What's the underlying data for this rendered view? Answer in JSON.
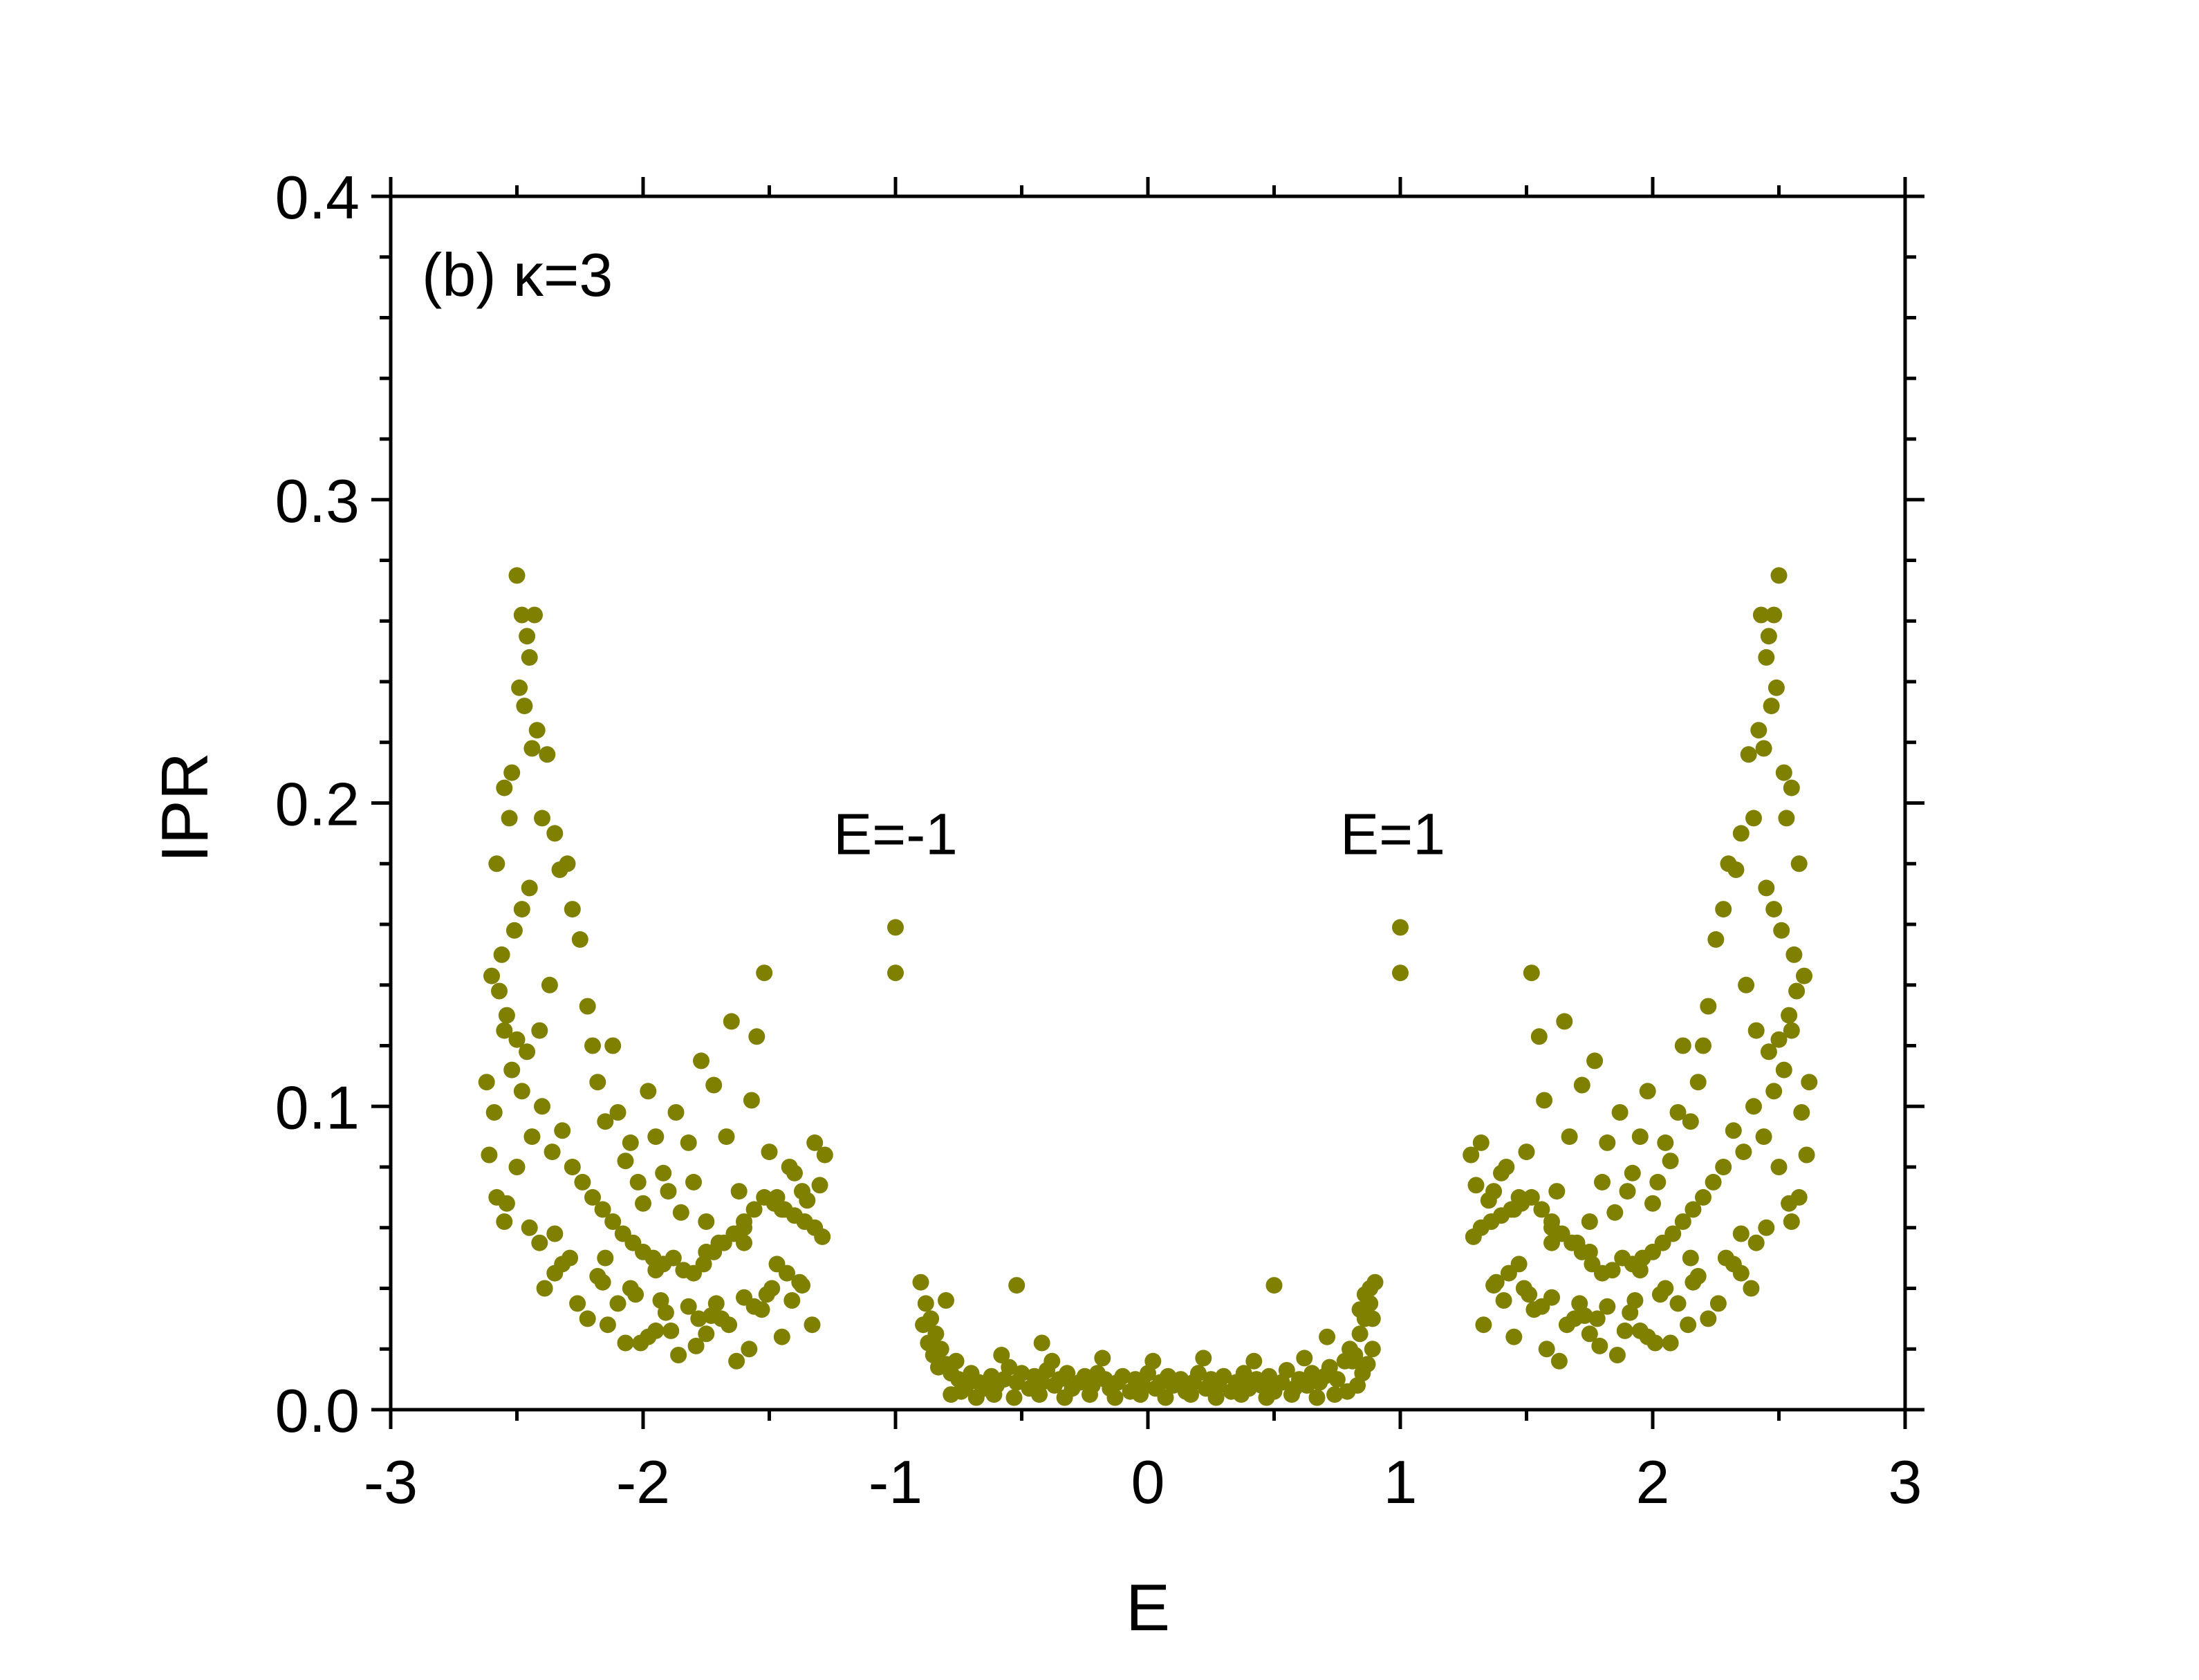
{
  "colors": {
    "points": "#808000",
    "axis": "#000000",
    "background": "#ffffff"
  },
  "chart_data": {
    "type": "scatter",
    "panel_label": "(b) κ=3",
    "xlabel": "E",
    "ylabel": "IPR",
    "xlim": [
      -3,
      3
    ],
    "ylim": [
      0,
      0.4
    ],
    "xticks": [
      "-3",
      "-2",
      "-1",
      "0",
      "1",
      "2",
      "3"
    ],
    "yticks": [
      "0.0",
      "0.1",
      "0.2",
      "0.3",
      "0.4"
    ],
    "grid": false,
    "annotations": [
      {
        "text": "E=-1",
        "x": -1.0,
        "y": 0.19
      },
      {
        "text": "E=1",
        "x": 0.97,
        "y": 0.19
      }
    ],
    "isolated_points": [
      {
        "x": -1.0,
        "y": 0.159
      },
      {
        "x": -1.0,
        "y": 0.144
      },
      {
        "x": 1.0,
        "y": 0.159
      },
      {
        "x": 1.0,
        "y": 0.144
      }
    ],
    "series": [
      {
        "x": [
          -2.5,
          -2.48,
          -2.46,
          -2.45,
          -2.43,
          -2.49,
          -2.47,
          -2.44,
          -2.52,
          -2.55,
          -2.53,
          -2.58,
          -2.42,
          -2.38,
          -2.35,
          -2.4,
          -2.45,
          -2.48,
          -2.51,
          -2.56,
          -2.6,
          -2.57,
          -2.54,
          -2.5,
          -2.46,
          -2.41,
          -2.37,
          -2.33,
          -2.3,
          -2.28,
          -2.25,
          -2.22,
          -2.2,
          -2.18,
          -2.15,
          -2.12,
          -2.1,
          -2.07,
          -2.05,
          -2.02,
          -2.0,
          -1.98,
          -1.95,
          -1.92,
          -1.9,
          -1.87,
          -1.85,
          -1.82,
          -1.8,
          -1.77,
          -1.75,
          -1.72,
          -1.7,
          -1.67,
          -1.65,
          -1.62,
          -1.6,
          -1.57,
          -1.55,
          -1.52,
          -1.5,
          -1.47,
          -1.45,
          -1.42,
          -1.4,
          -1.37,
          -1.35,
          -1.32,
          -1.3,
          -1.28,
          -2.62,
          -2.59,
          -2.55,
          -2.52,
          -2.48,
          -2.44,
          -2.4,
          -2.36,
          -2.32,
          -2.28,
          -2.24,
          -2.2,
          -2.16,
          -2.12,
          -2.08,
          -2.04,
          -2.0,
          -1.96,
          -1.92,
          -1.88,
          -1.84,
          -1.8,
          -1.76,
          -1.72,
          -1.68,
          -1.64,
          -1.6,
          -1.56,
          -1.52,
          -1.48,
          -1.44,
          -1.4,
          -1.36,
          -1.32,
          -1.29,
          -2.58,
          -2.45,
          -2.32,
          -2.18,
          -2.05,
          -1.93,
          -1.82,
          -1.71,
          -1.6,
          -1.49,
          -1.38,
          -2.54,
          -2.41,
          -2.29,
          -2.16,
          -2.03,
          -1.91,
          -1.78,
          -1.66,
          -1.53,
          -1.41,
          -2.61,
          -2.35,
          -2.1,
          -1.95,
          -1.75,
          -1.58,
          -1.45,
          -1.33,
          -2.5,
          -2.26,
          -2.01,
          -1.86,
          -1.69,
          -1.51,
          -1.37,
          -2.39,
          -2.14,
          -1.98,
          -1.79,
          -1.63,
          -1.47,
          -2.22,
          -2.07,
          -1.89,
          -1.73,
          -1.56,
          -1.43,
          -1.6,
          -1.75,
          -1.95,
          -2.15,
          -2.35,
          -2.55
        ],
        "y": [
          0.275,
          0.262,
          0.255,
          0.248,
          0.262,
          0.238,
          0.232,
          0.218,
          0.21,
          0.205,
          0.195,
          0.18,
          0.224,
          0.216,
          0.19,
          0.195,
          0.172,
          0.165,
          0.158,
          0.15,
          0.143,
          0.138,
          0.13,
          0.122,
          0.118,
          0.125,
          0.14,
          0.178,
          0.18,
          0.165,
          0.155,
          0.133,
          0.12,
          0.108,
          0.095,
          0.12,
          0.098,
          0.082,
          0.088,
          0.075,
          0.068,
          0.105,
          0.09,
          0.078,
          0.072,
          0.098,
          0.065,
          0.088,
          0.075,
          0.115,
          0.062,
          0.107,
          0.055,
          0.09,
          0.128,
          0.072,
          0.06,
          0.102,
          0.123,
          0.144,
          0.085,
          0.07,
          0.066,
          0.08,
          0.078,
          0.072,
          0.069,
          0.088,
          0.074,
          0.084,
          0.108,
          0.098,
          0.125,
          0.112,
          0.105,
          0.09,
          0.1,
          0.085,
          0.092,
          0.08,
          0.075,
          0.07,
          0.066,
          0.062,
          0.058,
          0.055,
          0.052,
          0.05,
          0.048,
          0.05,
          0.046,
          0.045,
          0.048,
          0.052,
          0.055,
          0.058,
          0.062,
          0.066,
          0.07,
          0.068,
          0.066,
          0.064,
          0.062,
          0.06,
          0.057,
          0.07,
          0.06,
          0.048,
          0.044,
          0.04,
          0.036,
          0.034,
          0.035,
          0.037,
          0.04,
          0.042,
          0.068,
          0.055,
          0.05,
          0.042,
          0.038,
          0.032,
          0.03,
          0.028,
          0.033,
          0.036,
          0.084,
          0.045,
          0.035,
          0.026,
          0.025,
          0.02,
          0.024,
          0.028,
          0.08,
          0.035,
          0.022,
          0.018,
          0.03,
          0.038,
          0.041,
          0.04,
          0.028,
          0.024,
          0.021,
          0.016,
          0.048,
          0.03,
          0.022,
          0.026,
          0.031,
          0.034,
          0.045,
          0.055,
          0.052,
          0.046,
          0.05,
          0.058,
          0.062
        ]
      },
      {
        "x": [
          -0.9,
          -0.88,
          -0.86,
          -0.84,
          -0.82,
          -0.8,
          -0.78,
          -0.75,
          -0.72,
          -0.7,
          -0.67,
          -0.65,
          -0.62,
          -0.6,
          -0.57,
          -0.55,
          -0.52,
          -0.5,
          -0.47,
          -0.45,
          -0.42,
          -0.4,
          -0.37,
          -0.35,
          -0.32,
          -0.3,
          -0.27,
          -0.25,
          -0.22,
          -0.2,
          -0.17,
          -0.15,
          -0.12,
          -0.1,
          -0.07,
          -0.05,
          -0.02,
          0.0,
          0.03,
          0.05,
          0.08,
          0.1,
          0.13,
          0.15,
          0.18,
          0.2,
          0.23,
          0.25,
          0.28,
          0.3,
          0.33,
          0.35,
          0.38,
          0.4,
          0.43,
          0.45,
          0.48,
          0.5,
          0.53,
          0.55,
          0.58,
          0.6,
          0.63,
          0.65,
          0.68,
          0.7,
          0.72,
          0.75,
          0.78,
          0.8,
          0.82,
          0.84,
          0.86,
          0.88,
          0.9,
          -0.89,
          -0.87,
          -0.85,
          -0.83,
          -0.78,
          -0.74,
          -0.68,
          -0.61,
          -0.53,
          -0.43,
          -0.33,
          -0.23,
          -0.13,
          -0.03,
          0.07,
          0.17,
          0.27,
          0.37,
          0.47,
          0.57,
          0.67,
          0.74,
          0.79,
          0.83,
          0.85,
          0.87,
          0.89,
          0.88,
          -0.8,
          -0.52,
          -0.42,
          0.5,
          0.71,
          0.86,
          0.89,
          0.84,
          -0.76,
          -0.58,
          -0.38,
          -0.18,
          0.02,
          0.22,
          0.42,
          0.62,
          0.81
        ],
        "y": [
          0.042,
          0.035,
          0.03,
          0.025,
          0.02,
          0.015,
          0.012,
          0.01,
          0.008,
          0.012,
          0.009,
          0.007,
          0.011,
          0.008,
          0.01,
          0.014,
          0.009,
          0.012,
          0.007,
          0.011,
          0.009,
          0.013,
          0.008,
          0.01,
          0.012,
          0.007,
          0.009,
          0.011,
          0.008,
          0.012,
          0.01,
          0.007,
          0.009,
          0.011,
          0.006,
          0.01,
          0.008,
          0.012,
          0.007,
          0.009,
          0.011,
          0.008,
          0.01,
          0.006,
          0.009,
          0.012,
          0.007,
          0.01,
          0.008,
          0.011,
          0.006,
          0.009,
          0.012,
          0.007,
          0.01,
          0.008,
          0.011,
          0.006,
          0.009,
          0.013,
          0.007,
          0.01,
          0.008,
          0.012,
          0.009,
          0.011,
          0.014,
          0.01,
          0.016,
          0.02,
          0.018,
          0.025,
          0.03,
          0.035,
          0.042,
          0.028,
          0.022,
          0.018,
          0.014,
          0.005,
          0.006,
          0.004,
          0.005,
          0.004,
          0.005,
          0.004,
          0.005,
          0.004,
          0.005,
          0.004,
          0.005,
          0.004,
          0.005,
          0.004,
          0.005,
          0.004,
          0.005,
          0.006,
          0.008,
          0.012,
          0.015,
          0.02,
          0.04,
          0.036,
          0.041,
          0.022,
          0.041,
          0.024,
          0.038,
          0.03,
          0.033,
          0.016,
          0.018,
          0.016,
          0.017,
          0.016,
          0.017,
          0.016,
          0.017,
          0.016
        ]
      },
      {
        "x": [
          2.5,
          2.48,
          2.46,
          2.45,
          2.43,
          2.49,
          2.47,
          2.44,
          2.52,
          2.55,
          2.53,
          2.58,
          2.42,
          2.38,
          2.35,
          2.4,
          2.45,
          2.48,
          2.51,
          2.56,
          2.6,
          2.57,
          2.54,
          2.5,
          2.46,
          2.41,
          2.37,
          2.33,
          2.3,
          2.28,
          2.25,
          2.22,
          2.2,
          2.18,
          2.15,
          2.12,
          2.1,
          2.07,
          2.05,
          2.02,
          2.0,
          1.98,
          1.95,
          1.92,
          1.9,
          1.87,
          1.85,
          1.82,
          1.8,
          1.77,
          1.75,
          1.72,
          1.7,
          1.67,
          1.65,
          1.62,
          1.6,
          1.57,
          1.55,
          1.52,
          1.5,
          1.47,
          1.45,
          1.42,
          1.4,
          1.37,
          1.35,
          1.32,
          1.3,
          1.28,
          2.62,
          2.59,
          2.55,
          2.52,
          2.48,
          2.44,
          2.4,
          2.36,
          2.32,
          2.28,
          2.24,
          2.2,
          2.16,
          2.12,
          2.08,
          2.04,
          2.0,
          1.96,
          1.92,
          1.88,
          1.84,
          1.8,
          1.76,
          1.72,
          1.68,
          1.64,
          1.6,
          1.56,
          1.52,
          1.48,
          1.44,
          1.4,
          1.36,
          1.32,
          1.29,
          2.58,
          2.45,
          2.32,
          2.18,
          2.05,
          1.93,
          1.82,
          1.71,
          1.6,
          1.49,
          1.38,
          2.54,
          2.41,
          2.29,
          2.16,
          2.03,
          1.91,
          1.78,
          1.66,
          1.53,
          1.41,
          2.61,
          2.35,
          2.1,
          1.95,
          1.75,
          1.58,
          1.45,
          1.33,
          2.5,
          2.26,
          2.01,
          1.86,
          1.69,
          1.51,
          1.37,
          2.39,
          2.14,
          1.98,
          1.79,
          1.63,
          1.47,
          2.22,
          2.07,
          1.89,
          1.73,
          1.56,
          1.43,
          1.6,
          1.75,
          1.95,
          2.15,
          2.35,
          2.55
        ],
        "y": [
          0.275,
          0.262,
          0.255,
          0.248,
          0.262,
          0.238,
          0.232,
          0.218,
          0.21,
          0.205,
          0.195,
          0.18,
          0.224,
          0.216,
          0.19,
          0.195,
          0.172,
          0.165,
          0.158,
          0.15,
          0.143,
          0.138,
          0.13,
          0.122,
          0.118,
          0.125,
          0.14,
          0.178,
          0.18,
          0.165,
          0.155,
          0.133,
          0.12,
          0.108,
          0.095,
          0.12,
          0.098,
          0.082,
          0.088,
          0.075,
          0.068,
          0.105,
          0.09,
          0.078,
          0.072,
          0.098,
          0.065,
          0.088,
          0.075,
          0.115,
          0.062,
          0.107,
          0.055,
          0.09,
          0.128,
          0.072,
          0.06,
          0.102,
          0.123,
          0.144,
          0.085,
          0.07,
          0.066,
          0.08,
          0.078,
          0.072,
          0.069,
          0.088,
          0.074,
          0.084,
          0.108,
          0.098,
          0.125,
          0.112,
          0.105,
          0.09,
          0.1,
          0.085,
          0.092,
          0.08,
          0.075,
          0.07,
          0.066,
          0.062,
          0.058,
          0.055,
          0.052,
          0.05,
          0.048,
          0.05,
          0.046,
          0.045,
          0.048,
          0.052,
          0.055,
          0.058,
          0.062,
          0.066,
          0.07,
          0.068,
          0.066,
          0.064,
          0.062,
          0.06,
          0.057,
          0.07,
          0.06,
          0.048,
          0.044,
          0.04,
          0.036,
          0.034,
          0.035,
          0.037,
          0.04,
          0.042,
          0.068,
          0.055,
          0.05,
          0.042,
          0.038,
          0.032,
          0.03,
          0.028,
          0.033,
          0.036,
          0.084,
          0.045,
          0.035,
          0.026,
          0.025,
          0.02,
          0.024,
          0.028,
          0.08,
          0.035,
          0.022,
          0.018,
          0.03,
          0.038,
          0.041,
          0.04,
          0.028,
          0.024,
          0.021,
          0.016,
          0.048,
          0.03,
          0.022,
          0.026,
          0.031,
          0.034,
          0.045,
          0.055,
          0.052,
          0.046,
          0.05,
          0.058,
          0.062
        ]
      }
    ]
  }
}
